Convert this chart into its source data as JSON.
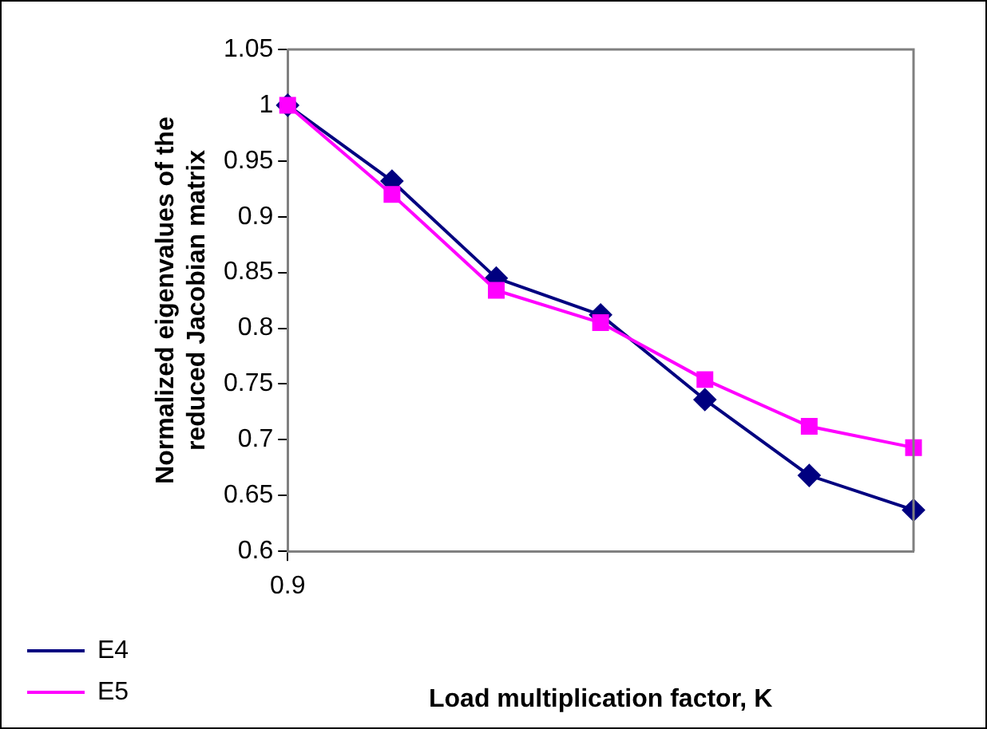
{
  "chart_data": {
    "type": "line",
    "xlabel": "Load multiplication factor, K",
    "ylabel": "Normalized eigenvalues of the reduced Jacobian matrix",
    "categories": [
      null,
      null,
      null,
      null,
      null,
      null,
      null
    ],
    "annotations": [
      "0.9"
    ],
    "ylim": [
      0.6,
      1.05
    ],
    "yticks": [
      0.6,
      0.65,
      0.7,
      0.75,
      0.8,
      0.85,
      0.9,
      0.95,
      1,
      1.05
    ],
    "grid": false,
    "legend": "bottom left",
    "line_style": "solid",
    "series": [
      {
        "name": "E4",
        "color": "#000080",
        "marker": "diamond",
        "values": [
          1.0,
          0.932,
          0.845,
          0.812,
          0.736,
          0.668,
          0.637
        ]
      },
      {
        "name": "E5",
        "color": "#ff00ff",
        "marker": "square",
        "values": [
          1.0,
          0.92,
          0.834,
          0.805,
          0.754,
          0.712,
          0.693
        ]
      }
    ]
  }
}
